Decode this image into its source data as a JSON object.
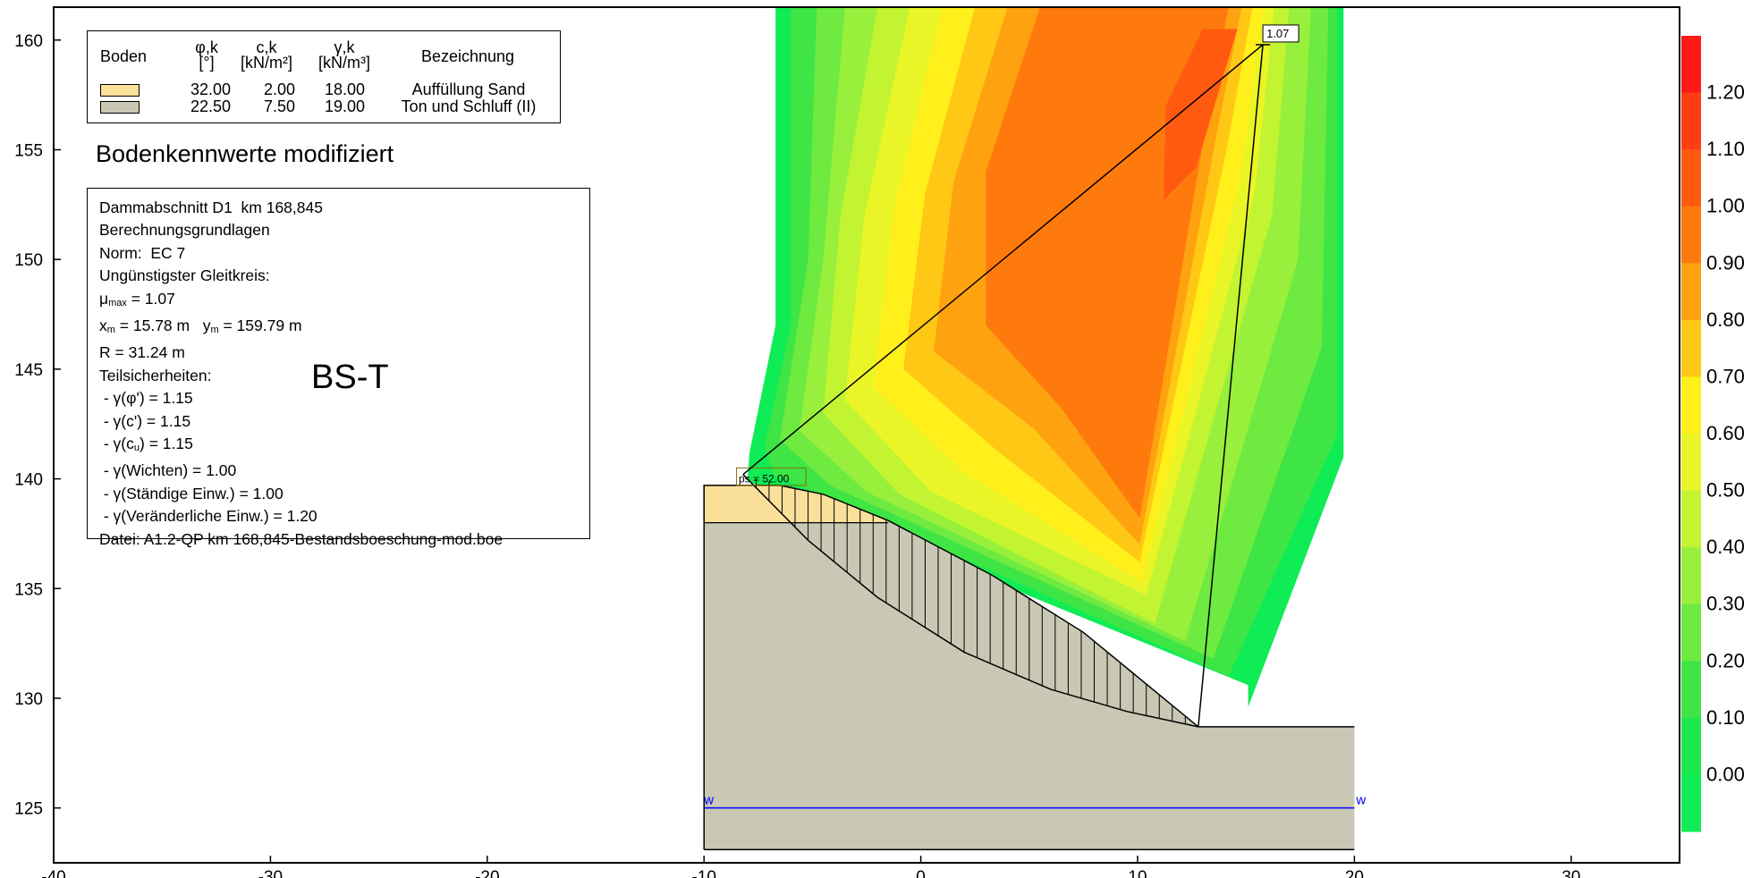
{
  "chart_data": {
    "type": "heatmap",
    "xlim": [
      -40,
      35
    ],
    "ylim": [
      122.5,
      161.5
    ],
    "x_ticks": [
      -40,
      -30,
      -20,
      -10,
      0,
      10,
      20,
      30
    ],
    "y_ticks": [
      125,
      130,
      135,
      140,
      145,
      150,
      155,
      160
    ],
    "colorbar": {
      "ticks": [
        "1.20",
        "1.10",
        "1.00",
        "0.90",
        "0.80",
        "0.70",
        "0.60",
        "0.50",
        "0.40",
        "0.30",
        "0.20",
        "0.10",
        "0.00"
      ],
      "colors": [
        "#ff1a1a",
        "#ff3d12",
        "#ff5a10",
        "#ff7a0c",
        "#ffa210",
        "#ffc814",
        "#ffef1a",
        "#eaf527",
        "#c2f431",
        "#98f03c",
        "#6eea40",
        "#3ee545",
        "#1de84c",
        "#10ec55"
      ]
    },
    "circle": {
      "xm": 15.78,
      "ym": 159.79,
      "R": 31.24,
      "mu": "1.07"
    },
    "surcharge_label": "ps = 52.00",
    "water_marker": "w",
    "terrain": {
      "fill_boundary": [
        [
          -10,
          123.1
        ],
        [
          -10,
          139.7
        ],
        [
          -6.5,
          139.7
        ],
        [
          -4.5,
          139.3
        ],
        [
          -1.5,
          138.1
        ],
        [
          3.3,
          135.6
        ],
        [
          7.5,
          133.0
        ],
        [
          12.8,
          128.7
        ],
        [
          20,
          128.7
        ],
        [
          20,
          123.1
        ]
      ],
      "sand_top": [
        [
          -10,
          139.7
        ],
        [
          -6.5,
          139.7
        ],
        [
          -4.5,
          139.3
        ],
        [
          -1.5,
          138.1
        ]
      ],
      "clay_top_y": 138.0,
      "water_level": 125.0,
      "bottom": 123.1
    },
    "slip_surface": [
      [
        -8.2,
        140.2
      ],
      [
        -5.2,
        137.2
      ],
      [
        -2,
        134.6
      ],
      [
        2,
        132.1
      ],
      [
        6,
        130.4
      ],
      [
        9.5,
        129.4
      ],
      [
        12.8,
        128.7
      ]
    ],
    "contours": [
      {
        "level": "0.00",
        "color": "#10ec55",
        "poly": [
          [
            -6.7,
            161.5
          ],
          [
            -6.7,
            147
          ],
          [
            -7.9,
            141.2
          ],
          [
            -8,
            139.9
          ],
          [
            15.1,
            130.6
          ],
          [
            15.1,
            129.6
          ],
          [
            19.5,
            141
          ],
          [
            19.5,
            161.5
          ]
        ]
      },
      {
        "level": "0.10",
        "color": "#3ee545",
        "poly": [
          [
            -6,
            161.5
          ],
          [
            -6,
            147
          ],
          [
            -7.2,
            141.5
          ],
          [
            -6.8,
            140.2
          ],
          [
            14.2,
            131
          ],
          [
            19.2,
            142
          ],
          [
            19.2,
            161.5
          ]
        ]
      },
      {
        "level": "0.20",
        "color": "#6eea40",
        "poly": [
          [
            -4.8,
            161.5
          ],
          [
            -5.2,
            150
          ],
          [
            -6.5,
            141.8
          ],
          [
            -4.2,
            139.7
          ],
          [
            13.5,
            131.8
          ],
          [
            18.5,
            146
          ],
          [
            18.8,
            161.5
          ]
        ]
      },
      {
        "level": "0.30",
        "color": "#98f03c",
        "poly": [
          [
            -3.5,
            161.5
          ],
          [
            -4.5,
            150
          ],
          [
            -5.6,
            142.2
          ],
          [
            -2.5,
            139.4
          ],
          [
            12.2,
            132.6
          ],
          [
            17.4,
            150
          ],
          [
            18,
            161.5
          ]
        ]
      },
      {
        "level": "0.40",
        "color": "#c2f431",
        "poly": [
          [
            -2,
            161.5
          ],
          [
            -3.7,
            152
          ],
          [
            -4.5,
            143
          ],
          [
            -1,
            139.3
          ],
          [
            10.8,
            133.4
          ],
          [
            16.2,
            152
          ],
          [
            17,
            161.5
          ]
        ]
      },
      {
        "level": "0.50",
        "color": "#eaf527",
        "poly": [
          [
            -0.5,
            161.5
          ],
          [
            -2.6,
            152
          ],
          [
            -3.5,
            143.6
          ],
          [
            0.5,
            139.4
          ],
          [
            10.4,
            134.7
          ],
          [
            15.4,
            153
          ],
          [
            16.3,
            161.5
          ]
        ]
      },
      {
        "level": "0.60",
        "color": "#ffef1a",
        "poly": [
          [
            1,
            161.5
          ],
          [
            -1.2,
            152.5
          ],
          [
            -2.2,
            144.2
          ],
          [
            2,
            140.3
          ],
          [
            10.2,
            135.3
          ],
          [
            14.8,
            154
          ],
          [
            15.8,
            161.5
          ]
        ]
      },
      {
        "level": "0.70",
        "color": "#ffc814",
        "poly": [
          [
            2.5,
            161.5
          ],
          [
            0.2,
            153
          ],
          [
            -0.8,
            145
          ],
          [
            3.5,
            141.3
          ],
          [
            10.1,
            136.2
          ],
          [
            14.1,
            155
          ],
          [
            15.3,
            161.5
          ]
        ]
      },
      {
        "level": "0.80",
        "color": "#ffa210",
        "poly": [
          [
            4,
            161.5
          ],
          [
            1.5,
            153.5
          ],
          [
            0.6,
            145.8
          ],
          [
            5.2,
            142.3
          ],
          [
            10.1,
            137
          ],
          [
            13.7,
            156
          ],
          [
            14.8,
            161.5
          ]
        ]
      },
      {
        "level": "0.90",
        "color": "#ff7a0c",
        "poly": [
          [
            5.5,
            161.5
          ],
          [
            3,
            154
          ],
          [
            3,
            147
          ],
          [
            6.5,
            143.2
          ],
          [
            10.1,
            138.2
          ],
          [
            13.3,
            157
          ],
          [
            14.2,
            161.5
          ]
        ]
      },
      {
        "level": "1.00",
        "color": "#ff5a10",
        "poly": [
          [
            13,
            160.5
          ],
          [
            11.3,
            157
          ],
          [
            11.2,
            152.7
          ],
          [
            12.7,
            154.2
          ],
          [
            14.6,
            160.5
          ]
        ]
      }
    ]
  },
  "legend": {
    "headers": {
      "boden": "Boden",
      "phi": "φ,k",
      "phi_unit": "[°]",
      "c": "c,k",
      "c_unit": "[kN/m²]",
      "gamma": "γ,k",
      "gamma_unit": "[kN/m³]",
      "name": "Bezeichnung"
    },
    "rows": [
      {
        "phi": "32.00",
        "c": "2.00",
        "gamma": "18.00",
        "name": "Auffüllung Sand",
        "color": "#fbe09a"
      },
      {
        "phi": "22.50",
        "c": "7.50",
        "gamma": "19.00",
        "name": "Ton und Schluff (II)",
        "color": "#c9c8b4"
      }
    ]
  },
  "heading": "Bodenkennwerte modifiziert",
  "info": {
    "line1": "Dammabschnitt D1  km 168,845",
    "line2": "Berechnungsgrundlagen",
    "line3": "Norm:  EC 7",
    "line4": "Ungünstigster Gleitkreis:",
    "mu_prefix": "μ",
    "mu_sub": "max",
    "mu_val": " = 1.07",
    "x_prefix": "x",
    "x_sub": "m",
    "x_val": " = 15.78 m   ",
    "y_prefix": "y",
    "y_sub": "m",
    "y_val": " = 159.79 m",
    "line7": "R = 31.24 m",
    "line8": "Teilsicherheiten:",
    "line9": " - γ(φ') = 1.15",
    "line10": " - γ(c') = 1.15",
    "line11_pre": " - γ(c",
    "line11_sub": "u",
    "line11_post": ") = 1.15",
    "line12": " - γ(Wichten) = 1.00",
    "line13": " - γ(Ständige Einw.) = 1.00",
    "line14": " - γ(Veränderliche Einw.) = 1.20",
    "line15": "Datei: A1.2-QP km 168,845-Bestandsboeschung-mod.boe"
  },
  "section_label": "BS-T"
}
